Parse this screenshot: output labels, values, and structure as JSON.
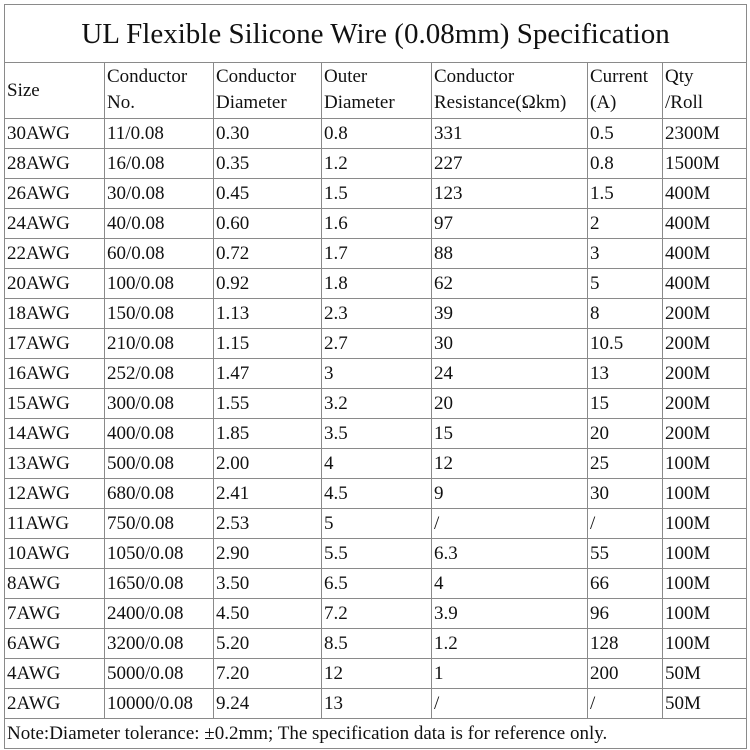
{
  "title": "UL Flexible Silicone Wire (0.08mm) Specification",
  "table": {
    "header": [
      [
        "Size"
      ],
      [
        "Conductor",
        "No."
      ],
      [
        "Conductor",
        "Diameter"
      ],
      [
        "Outer",
        "Diameter"
      ],
      [
        "Conductor",
        "Resistance(Ωkm)"
      ],
      [
        "Current",
        "(A)"
      ],
      [
        "Qty",
        "/Roll"
      ]
    ],
    "rows": [
      [
        "30AWG",
        "11/0.08",
        "0.30",
        "0.8",
        "331",
        "0.5",
        "2300M"
      ],
      [
        "28AWG",
        "16/0.08",
        "0.35",
        "1.2",
        "227",
        "0.8",
        "1500M"
      ],
      [
        "26AWG",
        "30/0.08",
        "0.45",
        "1.5",
        "123",
        "1.5",
        "400M"
      ],
      [
        "24AWG",
        "40/0.08",
        "0.60",
        "1.6",
        "97",
        "2",
        "400M"
      ],
      [
        "22AWG",
        "60/0.08",
        "0.72",
        "1.7",
        "88",
        "3",
        "400M"
      ],
      [
        "20AWG",
        "100/0.08",
        "0.92",
        "1.8",
        "62",
        "5",
        "400M"
      ],
      [
        "18AWG",
        "150/0.08",
        "1.13",
        "2.3",
        "39",
        "8",
        "200M"
      ],
      [
        "17AWG",
        "210/0.08",
        "1.15",
        "2.7",
        "30",
        "10.5",
        "200M"
      ],
      [
        "16AWG",
        "252/0.08",
        "1.47",
        "3",
        "24",
        "13",
        "200M"
      ],
      [
        "15AWG",
        "300/0.08",
        "1.55",
        "3.2",
        "20",
        "15",
        "200M"
      ],
      [
        "14AWG",
        "400/0.08",
        "1.85",
        "3.5",
        "15",
        "20",
        "200M"
      ],
      [
        "13AWG",
        "500/0.08",
        "2.00",
        "4",
        "12",
        "25",
        "100M"
      ],
      [
        "12AWG",
        "680/0.08",
        "2.41",
        "4.5",
        "9",
        "30",
        "100M"
      ],
      [
        "11AWG",
        "750/0.08",
        "2.53",
        "5",
        "/",
        "/",
        "100M"
      ],
      [
        "10AWG",
        "1050/0.08",
        "2.90",
        "5.5",
        "6.3",
        "55",
        "100M"
      ],
      [
        "8AWG",
        "1650/0.08",
        "3.50",
        "6.5",
        "4",
        "66",
        "100M"
      ],
      [
        "7AWG",
        "2400/0.08",
        "4.50",
        "7.2",
        "3.9",
        "96",
        "100M"
      ],
      [
        "6AWG",
        "3200/0.08",
        "5.20",
        "8.5",
        "1.2",
        "128",
        "100M"
      ],
      [
        "4AWG",
        "5000/0.08",
        "7.20",
        "12",
        "1",
        "200",
        "50M"
      ],
      [
        "2AWG",
        "10000/0.08",
        "9.24",
        "13",
        "/",
        "/",
        "50M"
      ]
    ]
  },
  "note": "Note:Diameter tolerance: ±0.2mm; The specification data is for reference only."
}
